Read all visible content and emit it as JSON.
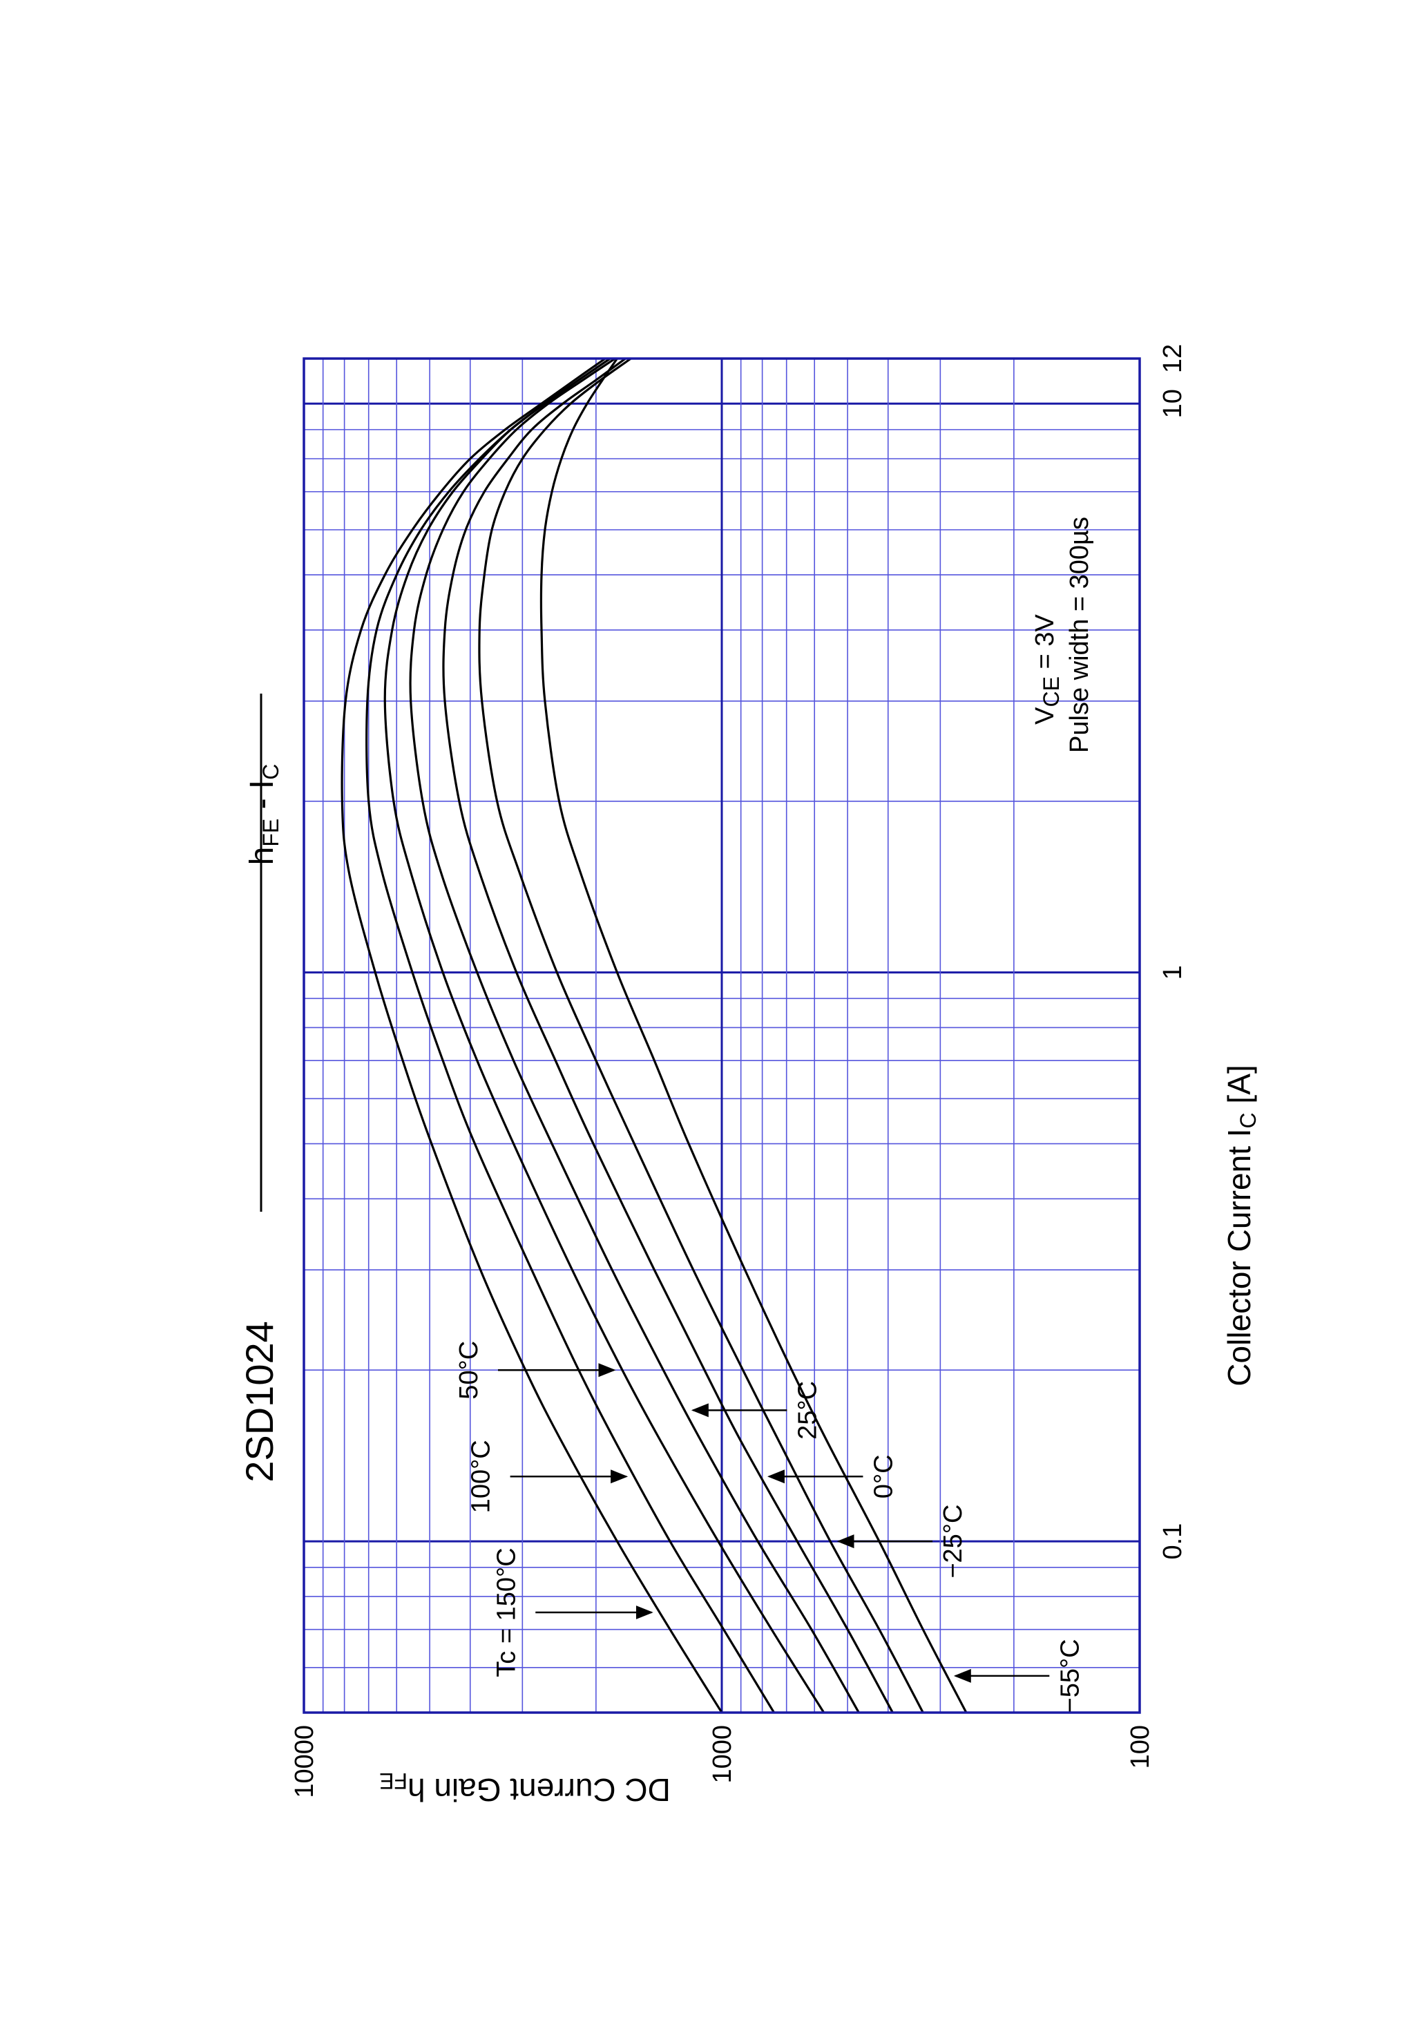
{
  "chart_data": {
    "type": "line",
    "title": "2SD1024",
    "subtitle": {
      "main": "h",
      "sub1": "FE",
      "mid": " - I",
      "sub2": "C"
    },
    "xlabel": {
      "main": "Collector Current  I",
      "sub": "C",
      "unit": "  [A]"
    },
    "ylabel": {
      "main": "DC Current Gain  h",
      "sub": "FE"
    },
    "x_scale": "log",
    "y_scale": "log",
    "xlim": [
      0.05,
      12
    ],
    "ylim": [
      100,
      10000
    ],
    "x_ticks": [
      {
        "value": 0.1,
        "label": "0.1"
      },
      {
        "value": 1,
        "label": "1"
      },
      {
        "value": 10,
        "label": "10"
      },
      {
        "value": 12,
        "label": "12"
      }
    ],
    "y_ticks": [
      {
        "value": 100,
        "label": "100"
      },
      {
        "value": 1000,
        "label": "1000"
      },
      {
        "value": 10000,
        "label": "10000"
      }
    ],
    "grid": true,
    "conditions": {
      "line1": {
        "main": "V",
        "sub": "CE",
        "rest": " = 3V"
      },
      "line2": "Pulse width = 300µs"
    },
    "series": [
      {
        "name": "Tc = 150°C",
        "x": [
          0.05,
          0.07,
          0.1,
          0.15,
          0.2,
          0.3,
          0.5,
          0.7,
          1,
          1.5,
          2,
          3,
          4,
          5,
          6,
          7,
          8,
          9,
          10,
          11,
          12
        ],
        "values": [
          1000,
          1330,
          1780,
          2420,
          2950,
          3780,
          4950,
          5800,
          6750,
          7800,
          8100,
          7950,
          7300,
          6400,
          5500,
          4700,
          4000,
          3300,
          2700,
          2250,
          1900
        ]
      },
      {
        "name": "100°C",
        "x": [
          0.05,
          0.07,
          0.1,
          0.15,
          0.2,
          0.3,
          0.5,
          0.7,
          1,
          1.5,
          2,
          3,
          4,
          5,
          6,
          7,
          8,
          9,
          10,
          11,
          12
        ],
        "values": [
          750,
          990,
          1330,
          1800,
          2200,
          2850,
          3900,
          4650,
          5500,
          6500,
          7000,
          7050,
          6700,
          6000,
          5250,
          4500,
          3800,
          3200,
          2650,
          2200,
          1850
        ]
      },
      {
        "name": "50°C",
        "x": [
          0.05,
          0.07,
          0.1,
          0.15,
          0.2,
          0.3,
          0.5,
          0.7,
          1,
          1.5,
          2,
          3,
          4,
          5,
          6,
          7,
          8,
          9,
          10,
          11,
          12
        ],
        "values": [
          570,
          760,
          1020,
          1400,
          1730,
          2280,
          3150,
          3850,
          4650,
          5550,
          6100,
          6400,
          6150,
          5650,
          5050,
          4400,
          3750,
          3200,
          2650,
          2200,
          1850
        ]
      },
      {
        "name": "25°C",
        "x": [
          0.05,
          0.07,
          0.1,
          0.15,
          0.2,
          0.3,
          0.5,
          0.7,
          1,
          1.5,
          2,
          3,
          4,
          5,
          6,
          7,
          8,
          9,
          10,
          11,
          12
        ],
        "values": [
          470,
          610,
          820,
          1120,
          1380,
          1830,
          2550,
          3150,
          3850,
          4700,
          5200,
          5550,
          5450,
          5100,
          4650,
          4150,
          3600,
          3100,
          2600,
          2150,
          1800
        ]
      },
      {
        "name": "0°C",
        "x": [
          0.05,
          0.07,
          0.1,
          0.15,
          0.2,
          0.3,
          0.5,
          0.7,
          1,
          1.5,
          2,
          3,
          4,
          5,
          6,
          7,
          8,
          9,
          10,
          11,
          12
        ],
        "values": [
          390,
          500,
          660,
          900,
          1100,
          1450,
          2030,
          2500,
          3100,
          3800,
          4250,
          4600,
          4600,
          4400,
          4100,
          3700,
          3250,
          2850,
          2400,
          2000,
          1700
        ]
      },
      {
        "name": "−25°C",
        "x": [
          0.05,
          0.07,
          0.1,
          0.15,
          0.2,
          0.3,
          0.5,
          0.7,
          1,
          1.5,
          2,
          3,
          4,
          5,
          6,
          7,
          8,
          9,
          10,
          11,
          12
        ],
        "values": [
          330,
          420,
          550,
          730,
          890,
          1170,
          1620,
          2000,
          2480,
          3050,
          3450,
          3750,
          3800,
          3700,
          3550,
          3300,
          3000,
          2650,
          2300,
          1950,
          1650
        ]
      },
      {
        "name": "−55°C",
        "x": [
          0.05,
          0.07,
          0.1,
          0.15,
          0.2,
          0.3,
          0.5,
          0.7,
          1,
          1.5,
          2,
          3,
          4,
          5,
          6,
          7,
          8,
          9,
          10,
          11,
          12
        ],
        "values": [
          260,
          330,
          420,
          560,
          680,
          880,
          1200,
          1450,
          1780,
          2180,
          2450,
          2650,
          2700,
          2700,
          2650,
          2550,
          2420,
          2270,
          2100,
          1930,
          1780
        ]
      }
    ],
    "annotations": [
      {
        "text": "Tc = 150°C",
        "series": "Tc = 150°C",
        "at_x": 0.075
      },
      {
        "text": "100°C",
        "series": "100°C",
        "at_x": 0.13
      },
      {
        "text": "50°C",
        "series": "50°C",
        "at_x": 0.2
      },
      {
        "text": "25°C",
        "series": "25°C",
        "at_x": 0.17
      },
      {
        "text": "0°C",
        "series": "0°C",
        "at_x": 0.13
      },
      {
        "text": "−25°C",
        "series": "−25°C",
        "at_x": 0.1
      },
      {
        "text": "−55°C",
        "series": "−55°C",
        "at_x": 0.058
      }
    ],
    "colors": {
      "grid": "#5555dd",
      "grid_major": "#1a1aa6",
      "frame": "#1a1aa6",
      "curves": "#000000"
    }
  }
}
